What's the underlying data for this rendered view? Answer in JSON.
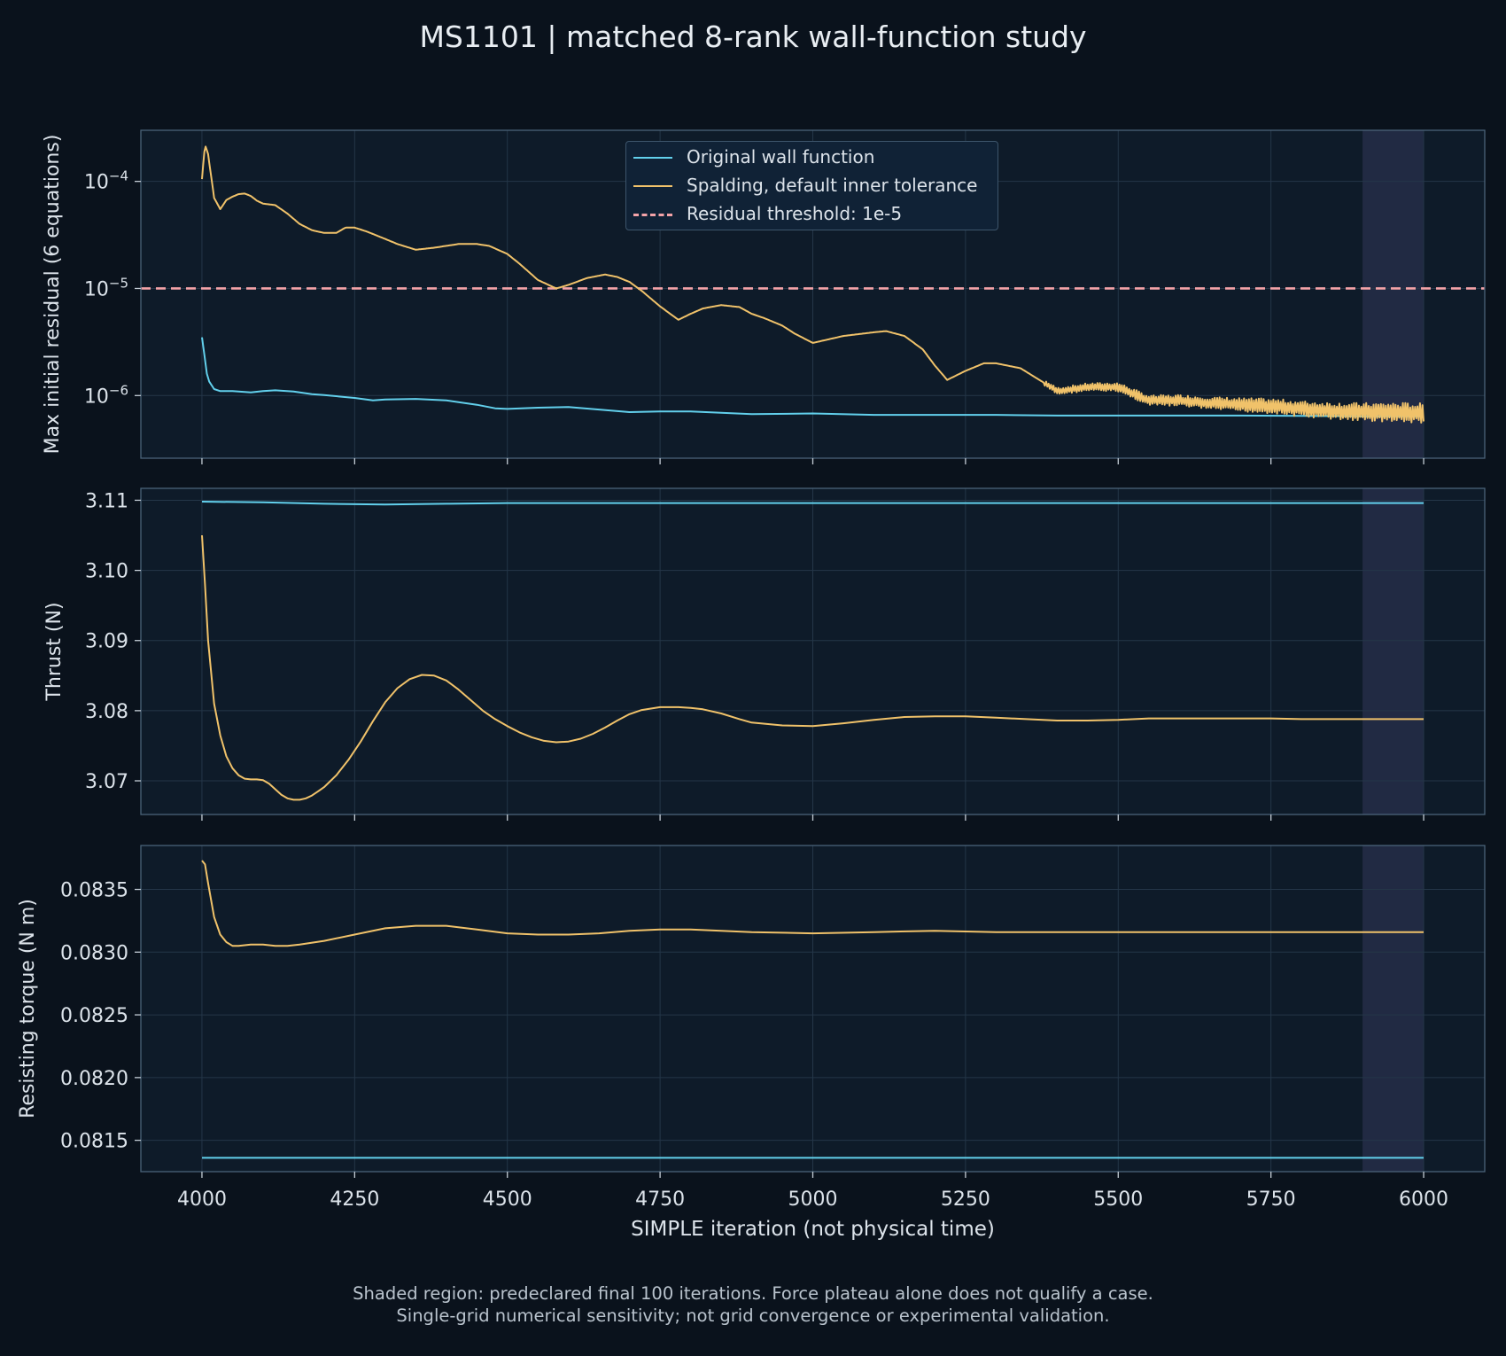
{
  "title": "MS1101 | matched 8-rank wall-function study",
  "footnotes": [
    "Shaded region: predeclared final 100 iterations. Force plateau alone does not qualify a case.",
    "Single-grid numerical sensitivity; not grid convergence or experimental validation."
  ],
  "colors": {
    "background": "#0a121c",
    "axes_face": "#0e1b29",
    "grid": "#243648",
    "spine": "#4a6378",
    "original": "#62d0ec",
    "spalding": "#f0c26a",
    "threshold": "#f4a3a8",
    "shade": "#232b45",
    "text": "#dce3ea"
  },
  "legend": [
    {
      "label": "Original wall function",
      "color": "#62d0ec",
      "style": "solid"
    },
    {
      "label": "Spalding, default inner tolerance",
      "color": "#f0c26a",
      "style": "solid"
    },
    {
      "label": "Residual threshold: 1e-5",
      "color": "#f4a3a8",
      "style": "dashed"
    }
  ],
  "chart_data": [
    {
      "type": "line",
      "ylabel": "Max initial residual (6 equations)",
      "yscale": "log",
      "ylim": [
        2.6e-07,
        0.0003
      ],
      "xlim": [
        3900,
        6100
      ],
      "grid": true,
      "legend_position": "top-center",
      "shaded_x": [
        5900,
        6000
      ],
      "yticks": [
        {
          "value": 1e-06,
          "base": "10",
          "exp": "−6"
        },
        {
          "value": 1e-05,
          "base": "10",
          "exp": "−5"
        },
        {
          "value": 0.0001,
          "base": "10",
          "exp": "−4"
        }
      ],
      "threshold": {
        "value": 1e-05,
        "label": "Residual threshold: 1e-5"
      },
      "series": [
        {
          "name": "Original wall function",
          "color": "#62d0ec",
          "x": [
            4000,
            4004,
            4008,
            4012,
            4020,
            4030,
            4050,
            4080,
            4100,
            4120,
            4150,
            4180,
            4200,
            4250,
            4280,
            4300,
            4350,
            4400,
            4450,
            4480,
            4500,
            4550,
            4600,
            4650,
            4700,
            4750,
            4800,
            4850,
            4900,
            5000,
            5100,
            5200,
            5300,
            5400,
            5500,
            5600,
            5700,
            5800,
            5900,
            6000
          ],
          "y": [
            3.5e-06,
            2.4e-06,
            1.6e-06,
            1.35e-06,
            1.15e-06,
            1.1e-06,
            1.1e-06,
            1.07e-06,
            1.1e-06,
            1.12e-06,
            1.09e-06,
            1.03e-06,
            1.01e-06,
            9.5e-07,
            9e-07,
            9.2e-07,
            9.3e-07,
            9e-07,
            8.2e-07,
            7.6e-07,
            7.5e-07,
            7.7e-07,
            7.8e-07,
            7.4e-07,
            7e-07,
            7.1e-07,
            7.1e-07,
            6.9e-07,
            6.7e-07,
            6.8e-07,
            6.6e-07,
            6.6e-07,
            6.6e-07,
            6.5e-07,
            6.5e-07,
            6.5e-07,
            6.5e-07,
            6.45e-07,
            6.4e-07,
            6.4e-07
          ]
        },
        {
          "name": "Spalding, default inner tolerance",
          "color": "#f0c26a",
          "x": [
            4000,
            4005,
            4010,
            4020,
            4030,
            4040,
            4050,
            4060,
            4070,
            4080,
            4090,
            4100,
            4120,
            4140,
            4160,
            4180,
            4200,
            4220,
            4235,
            4250,
            4270,
            4300,
            4320,
            4350,
            4380,
            4400,
            4420,
            4450,
            4470,
            4500,
            4520,
            4550,
            4580,
            4600,
            4630,
            4660,
            4680,
            4700,
            4720,
            4750,
            4780,
            4800,
            4820,
            4850,
            4880,
            4900,
            4920,
            4950,
            4970,
            5000,
            5050,
            5100,
            5120,
            5150,
            5180,
            5200,
            5220,
            5250,
            5280,
            5300,
            5340,
            5380,
            5400,
            5450,
            5500,
            5550,
            5600,
            5650,
            5700,
            5750,
            5800,
            5850,
            5900,
            5950,
            6000
          ],
          "y": [
            0.000105,
            0.00022,
            0.00018,
            7e-05,
            5.5e-05,
            6.7e-05,
            7.2e-05,
            7.6e-05,
            7.7e-05,
            7.3e-05,
            6.6e-05,
            6.2e-05,
            6e-05,
            5e-05,
            4e-05,
            3.5e-05,
            3.3e-05,
            3.3e-05,
            3.7e-05,
            3.7e-05,
            3.4e-05,
            2.9e-05,
            2.6e-05,
            2.3e-05,
            2.4e-05,
            2.5e-05,
            2.6e-05,
            2.6e-05,
            2.5e-05,
            2.1e-05,
            1.7e-05,
            1.2e-05,
            1e-05,
            1.08e-05,
            1.25e-05,
            1.35e-05,
            1.28e-05,
            1.15e-05,
            9.5e-06,
            6.8e-06,
            5.1e-06,
            5.8e-06,
            6.5e-06,
            7e-06,
            6.7e-06,
            5.8e-06,
            5.3e-06,
            4.5e-06,
            3.8e-06,
            3.1e-06,
            3.6e-06,
            3.9e-06,
            4e-06,
            3.6e-06,
            2.7e-06,
            1.9e-06,
            1.4e-06,
            1.7e-06,
            2e-06,
            2e-06,
            1.8e-06,
            1.3e-06,
            1.1e-06,
            1.2e-06,
            1.2e-06,
            9e-07,
            9e-07,
            8.5e-07,
            8.2e-07,
            8e-07,
            7.5e-07,
            7.2e-07,
            7e-07,
            7e-07,
            6.8e-07
          ],
          "noise": {
            "from": 5380,
            "amplitude_dex": [
              0.05,
              0.16
            ]
          }
        }
      ]
    },
    {
      "type": "line",
      "ylabel": "Thrust (N)",
      "ylim": [
        3.0652,
        3.1117
      ],
      "xlim": [
        3900,
        6100
      ],
      "grid": true,
      "shaded_x": [
        5900,
        6000
      ],
      "yticks": [
        "3.07",
        "3.08",
        "3.09",
        "3.10",
        "3.11"
      ],
      "series": [
        {
          "name": "Original wall function",
          "color": "#62d0ec",
          "x": [
            4000,
            4100,
            4200,
            4300,
            4400,
            4500,
            4600,
            4800,
            5000,
            5200,
            5400,
            5600,
            5800,
            6000
          ],
          "y": [
            3.1098,
            3.1097,
            3.1095,
            3.1094,
            3.1095,
            3.1096,
            3.1096,
            3.1096,
            3.1096,
            3.1096,
            3.1096,
            3.1096,
            3.1096,
            3.1096
          ]
        },
        {
          "name": "Spalding, default inner tolerance",
          "color": "#f0c26a",
          "x": [
            4000,
            4005,
            4010,
            4020,
            4030,
            4040,
            4050,
            4060,
            4070,
            4080,
            4090,
            4100,
            4110,
            4120,
            4130,
            4140,
            4150,
            4160,
            4170,
            4180,
            4190,
            4200,
            4220,
            4240,
            4260,
            4280,
            4300,
            4320,
            4340,
            4360,
            4380,
            4400,
            4420,
            4440,
            4460,
            4480,
            4500,
            4520,
            4540,
            4560,
            4580,
            4600,
            4620,
            4640,
            4660,
            4680,
            4700,
            4720,
            4750,
            4780,
            4800,
            4820,
            4850,
            4880,
            4900,
            4950,
            5000,
            5050,
            5100,
            5150,
            5200,
            5250,
            5300,
            5350,
            5400,
            5450,
            5500,
            5550,
            5600,
            5650,
            5700,
            5750,
            5800,
            5850,
            5900,
            5950,
            6000
          ],
          "y": [
            3.105,
            3.098,
            3.09,
            3.081,
            3.0765,
            3.0735,
            3.0718,
            3.0708,
            3.0703,
            3.0702,
            3.0702,
            3.0701,
            3.0696,
            3.0688,
            3.068,
            3.0675,
            3.0673,
            3.0673,
            3.0675,
            3.0679,
            3.0685,
            3.0691,
            3.0708,
            3.073,
            3.0756,
            3.0785,
            3.0812,
            3.0832,
            3.0845,
            3.0851,
            3.085,
            3.0843,
            3.083,
            3.0815,
            3.08,
            3.0788,
            3.0778,
            3.0769,
            3.0762,
            3.0757,
            3.0755,
            3.0756,
            3.076,
            3.0767,
            3.0776,
            3.0786,
            3.0795,
            3.0801,
            3.0805,
            3.0805,
            3.0804,
            3.0802,
            3.0796,
            3.0788,
            3.0783,
            3.0779,
            3.0778,
            3.0782,
            3.0787,
            3.0791,
            3.0792,
            3.0792,
            3.079,
            3.0788,
            3.0786,
            3.0786,
            3.0787,
            3.0789,
            3.0789,
            3.0789,
            3.0789,
            3.0789,
            3.0788,
            3.0788,
            3.0788,
            3.0788,
            3.0788
          ]
        }
      ]
    },
    {
      "type": "line",
      "ylabel": "Resisting torque (N m)",
      "xlabel": "SIMPLE iteration (not physical time)",
      "ylim": [
        0.08125,
        0.08385
      ],
      "xlim": [
        3900,
        6100
      ],
      "grid": true,
      "shaded_x": [
        5900,
        6000
      ],
      "yticks": [
        "0.0815",
        "0.0820",
        "0.0825",
        "0.0830",
        "0.0835"
      ],
      "xticks": [
        "4000",
        "4250",
        "4500",
        "4750",
        "5000",
        "5250",
        "5500",
        "5750",
        "6000"
      ],
      "series": [
        {
          "name": "Original wall function",
          "color": "#62d0ec",
          "x": [
            4000,
            6000
          ],
          "y": [
            0.08136,
            0.08136
          ]
        },
        {
          "name": "Spalding, default inner tolerance",
          "color": "#f0c26a",
          "x": [
            4000,
            4005,
            4010,
            4020,
            4030,
            4040,
            4050,
            4060,
            4080,
            4100,
            4120,
            4140,
            4160,
            4200,
            4250,
            4300,
            4350,
            4400,
            4450,
            4500,
            4550,
            4600,
            4650,
            4700,
            4750,
            4800,
            4850,
            4900,
            5000,
            5100,
            5200,
            5300,
            5400,
            5500,
            5600,
            5700,
            5800,
            5900,
            6000
          ],
          "y": [
            0.08373,
            0.0837,
            0.08355,
            0.08328,
            0.08314,
            0.08308,
            0.08305,
            0.08305,
            0.08306,
            0.08306,
            0.08305,
            0.08305,
            0.08306,
            0.08309,
            0.08314,
            0.08319,
            0.08321,
            0.08321,
            0.08318,
            0.08315,
            0.08314,
            0.08314,
            0.08315,
            0.08317,
            0.08318,
            0.08318,
            0.08317,
            0.08316,
            0.08315,
            0.08316,
            0.08317,
            0.08316,
            0.08316,
            0.08316,
            0.08316,
            0.08316,
            0.08316,
            0.08316,
            0.08316
          ]
        }
      ]
    }
  ]
}
